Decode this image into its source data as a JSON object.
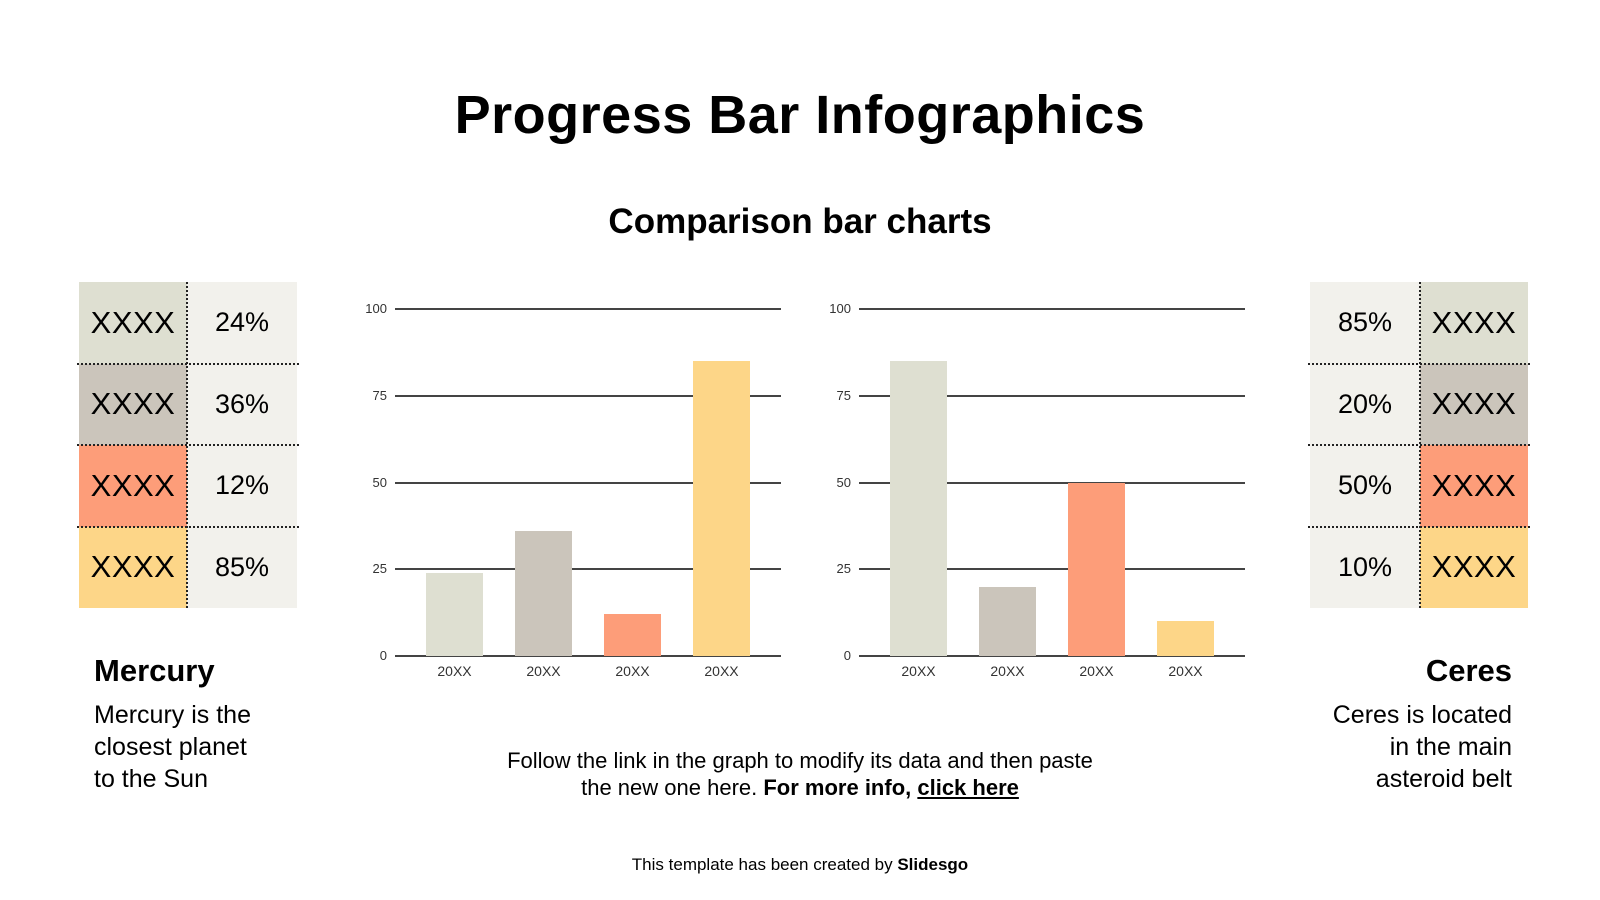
{
  "title": "Progress Bar Infographics",
  "subtitle": "Comparison bar charts",
  "palette": {
    "sage": "#dedfd1",
    "taupe": "#cbc5bb",
    "salmon": "#fd9d79",
    "yellow": "#fdd688",
    "cell_bg": "#f2f1ec"
  },
  "left_table": {
    "rows": [
      {
        "label": "XXXX",
        "value": "24%",
        "color": "#dedfd1"
      },
      {
        "label": "XXXX",
        "value": "36%",
        "color": "#cbc5bb"
      },
      {
        "label": "XXXX",
        "value": "12%",
        "color": "#fd9d79"
      },
      {
        "label": "XXXX",
        "value": "85%",
        "color": "#fdd688"
      }
    ]
  },
  "right_table": {
    "rows": [
      {
        "label": "XXXX",
        "value": "85%",
        "color": "#dedfd1"
      },
      {
        "label": "XXXX",
        "value": "20%",
        "color": "#cbc5bb"
      },
      {
        "label": "XXXX",
        "value": "50%",
        "color": "#fd9d79"
      },
      {
        "label": "XXXX",
        "value": "10%",
        "color": "#fdd688"
      }
    ]
  },
  "left_text": {
    "heading": "Mercury",
    "line1": "Mercury is the",
    "line2": "closest planet",
    "line3": "to the Sun"
  },
  "right_text": {
    "heading": "Ceres",
    "line1": "Ceres is located",
    "line2": "in the main",
    "line3": "asteroid belt"
  },
  "note": {
    "line1": "Follow the link in the graph to modify its data and then paste",
    "line2_plain": "the new one here. ",
    "line2_bold": "For more info, ",
    "link": "click here"
  },
  "footer": {
    "plain": "This template has been created by ",
    "brand": "Slidesgo"
  },
  "chart_data": [
    {
      "type": "bar",
      "title": "",
      "categories": [
        "20XX",
        "20XX",
        "20XX",
        "20XX"
      ],
      "values": [
        24,
        36,
        12,
        85
      ],
      "colors": [
        "#dedfd1",
        "#cbc5bb",
        "#fd9d79",
        "#fdd688"
      ],
      "yticks": [
        "0",
        "25",
        "50",
        "75",
        "100"
      ],
      "ylim": [
        0,
        100
      ],
      "xlabel": "",
      "ylabel": "",
      "grid": true,
      "legend": false
    },
    {
      "type": "bar",
      "title": "",
      "categories": [
        "20XX",
        "20XX",
        "20XX",
        "20XX"
      ],
      "values": [
        85,
        20,
        50,
        10
      ],
      "colors": [
        "#dedfd1",
        "#cbc5bb",
        "#fd9d79",
        "#fdd688"
      ],
      "yticks": [
        "0",
        "25",
        "50",
        "75",
        "100"
      ],
      "ylim": [
        0,
        100
      ],
      "xlabel": "",
      "ylabel": "",
      "grid": true,
      "legend": false
    }
  ]
}
